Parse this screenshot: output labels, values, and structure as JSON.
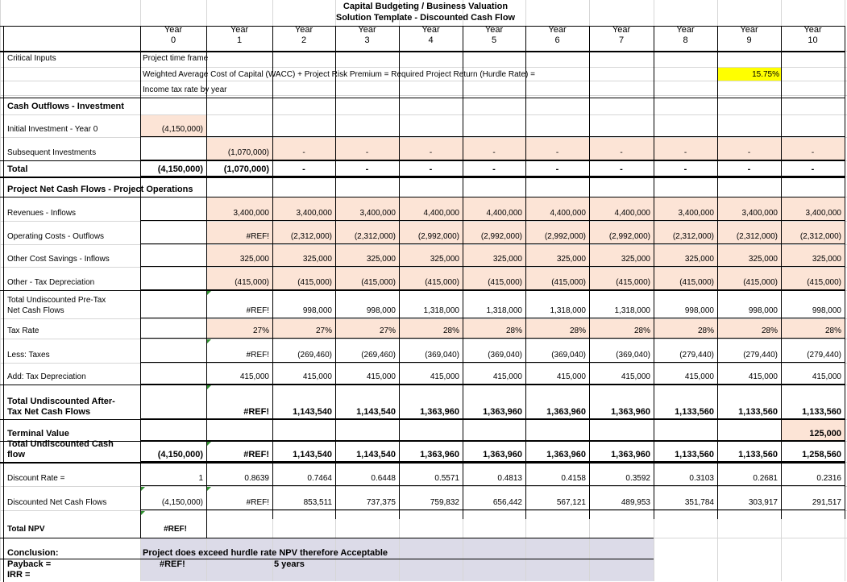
{
  "title": {
    "line1": "Capital Budgeting / Business Valuation",
    "line2": "Solution Template - Discounted Cash Flow"
  },
  "colors": {
    "input_fill": "#fce4d6",
    "highlight": "#ffff00",
    "conclusion_fill": "#dcdbe8"
  },
  "headers": [
    {
      "label": "Year",
      "num": "0"
    },
    {
      "label": "Year",
      "num": "1"
    },
    {
      "label": "Year",
      "num": "2"
    },
    {
      "label": "Year",
      "num": "3"
    },
    {
      "label": "Year",
      "num": "4"
    },
    {
      "label": "Year",
      "num": "5"
    },
    {
      "label": "Year",
      "num": "6"
    },
    {
      "label": "Year",
      "num": "7"
    },
    {
      "label": "Year",
      "num": "8"
    },
    {
      "label": "Year",
      "num": "9"
    },
    {
      "label": "Year",
      "num": "10"
    }
  ],
  "critical": {
    "label": "Critical Inputs",
    "time_frame": "Project time frame",
    "wacc_text": "Weighted Average Cost of Capital (WACC) + Project Risk Premium = Required Project Return (Hurdle Rate) =",
    "hurdle_value": "15.75%",
    "tax_rate_text": "Income tax rate by year"
  },
  "sections": {
    "outflows": "Cash Outflows - Investment",
    "operations": "Project Net Cash Flows - Project Operations"
  },
  "rows": {
    "initial": {
      "label": "Initial Investment - Year 0",
      "values": [
        "(4,150,000)",
        "",
        "",
        "",
        "",
        "",
        "",
        "",
        "",
        "",
        ""
      ]
    },
    "subsequent": {
      "label": "Subsequent Investments",
      "values": [
        "",
        "(1,070,000)",
        "-",
        "-",
        "-",
        "-",
        "-",
        "-",
        "-",
        "-",
        "-"
      ]
    },
    "total": {
      "label": "Total",
      "values": [
        "(4,150,000)",
        "(1,070,000)",
        "-",
        "-",
        "-",
        "-",
        "-",
        "-",
        "-",
        "-",
        "-"
      ]
    },
    "revenues": {
      "label": "Revenues - Inflows",
      "values": [
        "",
        "3,400,000",
        "3,400,000",
        "3,400,000",
        "4,400,000",
        "4,400,000",
        "4,400,000",
        "4,400,000",
        "3,400,000",
        "3,400,000",
        "3,400,000"
      ]
    },
    "opcosts": {
      "label": "Operating Costs - Outflows",
      "values": [
        "",
        "#REF!",
        "(2,312,000)",
        "(2,312,000)",
        "(2,992,000)",
        "(2,992,000)",
        "(2,992,000)",
        "(2,992,000)",
        "(2,312,000)",
        "(2,312,000)",
        "(2,312,000)"
      ]
    },
    "savings": {
      "label": "Other Cost Savings - Inflows",
      "values": [
        "",
        "325,000",
        "325,000",
        "325,000",
        "325,000",
        "325,000",
        "325,000",
        "325,000",
        "325,000",
        "325,000",
        "325,000"
      ]
    },
    "taxdep": {
      "label": "Other - Tax Depreciation",
      "values": [
        "",
        "(415,000)",
        "(415,000)",
        "(415,000)",
        "(415,000)",
        "(415,000)",
        "(415,000)",
        "(415,000)",
        "(415,000)",
        "(415,000)",
        "(415,000)"
      ]
    },
    "pretax": {
      "label1": "Total Undiscounted Pre-Tax",
      "label2": "Net Cash Flows",
      "values": [
        "",
        "#REF!",
        "998,000",
        "998,000",
        "1,318,000",
        "1,318,000",
        "1,318,000",
        "1,318,000",
        "998,000",
        "998,000",
        "998,000"
      ]
    },
    "taxrate": {
      "label": "Tax Rate",
      "values": [
        "",
        "27%",
        "27%",
        "27%",
        "28%",
        "28%",
        "28%",
        "28%",
        "28%",
        "28%",
        "28%"
      ]
    },
    "taxes": {
      "label": "Less: Taxes",
      "values": [
        "",
        "#REF!",
        "(269,460)",
        "(269,460)",
        "(369,040)",
        "(369,040)",
        "(369,040)",
        "(369,040)",
        "(279,440)",
        "(279,440)",
        "(279,440)"
      ]
    },
    "adddep": {
      "label": "Add: Tax Depreciation",
      "values": [
        "",
        "415,000",
        "415,000",
        "415,000",
        "415,000",
        "415,000",
        "415,000",
        "415,000",
        "415,000",
        "415,000",
        "415,000"
      ]
    },
    "aftertax": {
      "label1": "Total Undiscounted After-",
      "label2": "Tax Net Cash Flows",
      "values": [
        "",
        "#REF!",
        "1,143,540",
        "1,143,540",
        "1,363,960",
        "1,363,960",
        "1,363,960",
        "1,363,960",
        "1,133,560",
        "1,133,560",
        "1,133,560"
      ]
    },
    "terminal": {
      "label": "Terminal Value",
      "values": [
        "",
        "",
        "",
        "",
        "",
        "",
        "",
        "",
        "",
        "",
        "125,000"
      ]
    },
    "totalcash": {
      "label1": "Total Undiscounted Cash",
      "label2": "flow",
      "values": [
        "(4,150,000)",
        "#REF!",
        "1,143,540",
        "1,143,540",
        "1,363,960",
        "1,363,960",
        "1,363,960",
        "1,363,960",
        "1,133,560",
        "1,133,560",
        "1,258,560"
      ]
    },
    "discrate": {
      "label": "Discount Rate =",
      "values": [
        "1",
        "0.8639",
        "0.7464",
        "0.6448",
        "0.5571",
        "0.4813",
        "0.4158",
        "0.3592",
        "0.3103",
        "0.2681",
        "0.2316"
      ]
    },
    "discounted": {
      "label": "Discounted Net Cash Flows",
      "values": [
        "(4,150,000)",
        "#REF!",
        "853,511",
        "737,375",
        "759,832",
        "656,442",
        "567,121",
        "489,953",
        "351,784",
        "303,917",
        "291,517"
      ]
    }
  },
  "npv": {
    "label": "Total NPV",
    "value": "#REF!"
  },
  "conclusion": {
    "label": "Conclusion:",
    "text": "Project does exceed hurdle rate NPV therefore Acceptable",
    "payback_label": "Payback =",
    "payback_value": "#REF!",
    "payback_years": "5 years",
    "irr_label": "IRR ="
  }
}
